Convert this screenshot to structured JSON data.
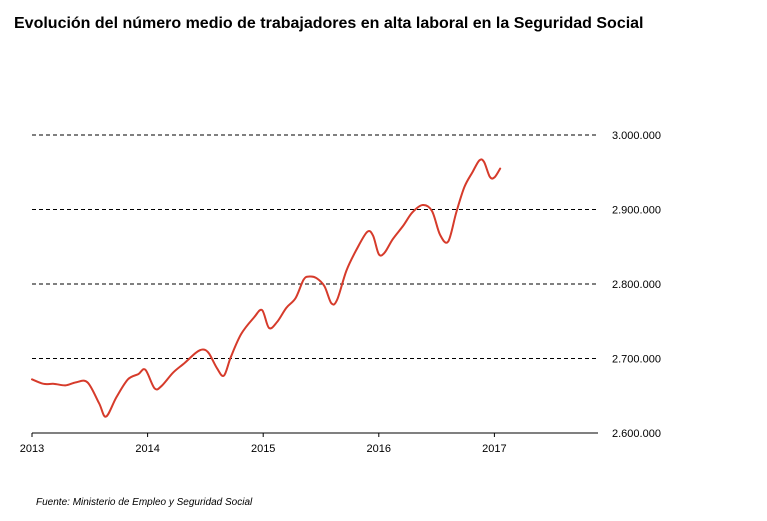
{
  "chart_data": {
    "type": "line",
    "title": "Evolución del número medio de trabajadores en alta laboral en la Seguridad Social",
    "source": "Fuente: Ministerio de Empleo y Seguridad Social",
    "xlabel": "",
    "ylabel": "",
    "x_ticks": [
      "2013",
      "2014",
      "2015",
      "2016",
      "2017"
    ],
    "y_ticks": [
      {
        "value": 2600000,
        "label": "2.600.000"
      },
      {
        "value": 2700000,
        "label": "2.700.000"
      },
      {
        "value": 2800000,
        "label": "2.800.000"
      },
      {
        "value": 2900000,
        "label": "2.900.000"
      },
      {
        "value": 3000000,
        "label": "3.000.000"
      }
    ],
    "ylim": [
      2600000,
      3000000
    ],
    "xlim": [
      2013.0,
      2018.0
    ],
    "grid": "horizontal-dashed",
    "axis_side": "right",
    "series": [
      {
        "color": "#d63b2b",
        "x": [
          2013.0,
          2013.1,
          2013.19,
          2013.29,
          2013.38,
          2013.48,
          2013.58,
          2013.64,
          2013.73,
          2013.83,
          2013.92,
          2013.98,
          2014.06,
          2014.12,
          2014.22,
          2014.32,
          2014.42,
          2014.48,
          2014.53,
          2014.6,
          2014.66,
          2014.72,
          2014.81,
          2014.92,
          2014.99,
          2015.05,
          2015.12,
          2015.2,
          2015.28,
          2015.35,
          2015.4,
          2015.46,
          2015.53,
          2015.59,
          2015.64,
          2015.72,
          2015.81,
          2015.9,
          2015.95,
          2016.0,
          2016.05,
          2016.12,
          2016.21,
          2016.29,
          2016.38,
          2016.46,
          2016.53,
          2016.6,
          2016.67,
          2016.74,
          2016.81,
          2016.87,
          2016.91,
          2016.96,
          2017.0,
          2017.05
        ],
        "y": [
          2672000,
          2666000,
          2666000,
          2664000,
          2668000,
          2668000,
          2640000,
          2622000,
          2648000,
          2672000,
          2679000,
          2685000,
          2660000,
          2663000,
          2681000,
          2694000,
          2708000,
          2712000,
          2707000,
          2687000,
          2677000,
          2702000,
          2733000,
          2755000,
          2765000,
          2741000,
          2749000,
          2768000,
          2781000,
          2806000,
          2810000,
          2808000,
          2797000,
          2774000,
          2779000,
          2818000,
          2847000,
          2870000,
          2865000,
          2840000,
          2842000,
          2860000,
          2878000,
          2896000,
          2906000,
          2898000,
          2866000,
          2857000,
          2896000,
          2930000,
          2950000,
          2966000,
          2964000,
          2944000,
          2943000,
          2955000
        ]
      }
    ]
  }
}
